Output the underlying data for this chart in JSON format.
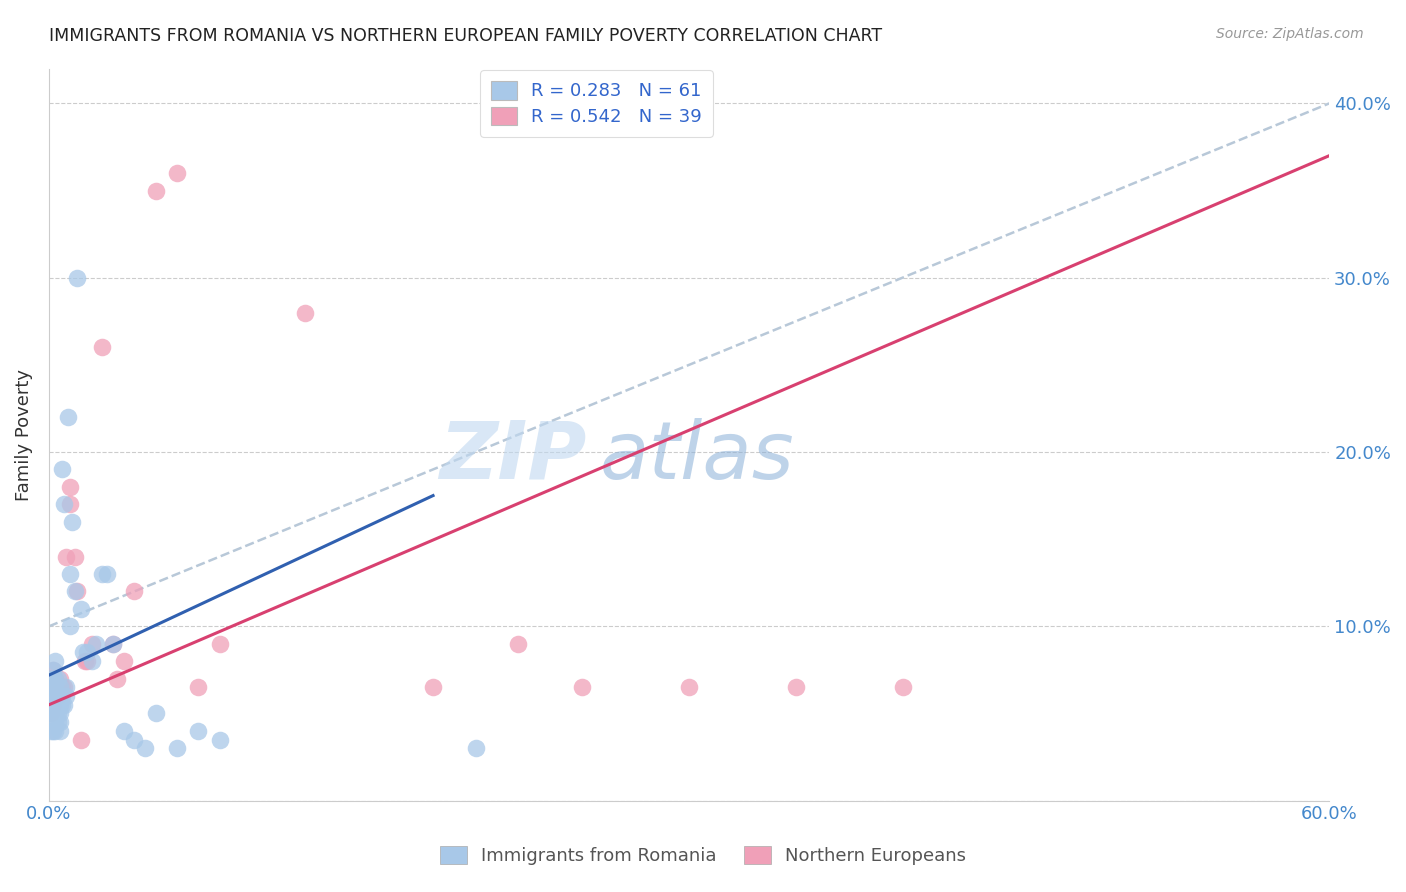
{
  "title": "IMMIGRANTS FROM ROMANIA VS NORTHERN EUROPEAN FAMILY POVERTY CORRELATION CHART",
  "source": "Source: ZipAtlas.com",
  "ylabel": "Family Poverty",
  "legend_label1": "Immigrants from Romania",
  "legend_label2": "Northern Europeans",
  "legend_R1": "R = 0.283",
  "legend_N1": "N = 61",
  "legend_R2": "R = 0.542",
  "legend_N2": "N = 39",
  "color_blue": "#a8c8e8",
  "color_pink": "#f0a0b8",
  "color_blue_line": "#3060b0",
  "color_pink_line": "#d84070",
  "color_dashed": "#b8c8d8",
  "xlim": [
    0.0,
    0.6
  ],
  "ylim": [
    0.0,
    0.42
  ],
  "yticks": [
    0.0,
    0.1,
    0.2,
    0.3,
    0.4
  ],
  "ytick_labels": [
    "",
    "10.0%",
    "20.0%",
    "30.0%",
    "40.0%"
  ],
  "xticks": [
    0.0,
    0.1,
    0.2,
    0.3,
    0.4,
    0.5,
    0.6
  ],
  "xtick_labels": [
    "0.0%",
    "",
    "",
    "",
    "",
    "",
    "60.0%"
  ],
  "watermark_zip": "ZIP",
  "watermark_atlas": "atlas",
  "blue_scatter_x": [
    0.001,
    0.001,
    0.001,
    0.001,
    0.001,
    0.001,
    0.002,
    0.002,
    0.002,
    0.002,
    0.002,
    0.002,
    0.002,
    0.003,
    0.003,
    0.003,
    0.003,
    0.003,
    0.003,
    0.003,
    0.003,
    0.004,
    0.004,
    0.004,
    0.004,
    0.004,
    0.005,
    0.005,
    0.005,
    0.005,
    0.005,
    0.005,
    0.006,
    0.006,
    0.006,
    0.007,
    0.007,
    0.008,
    0.008,
    0.009,
    0.01,
    0.01,
    0.011,
    0.012,
    0.013,
    0.015,
    0.016,
    0.018,
    0.02,
    0.022,
    0.025,
    0.027,
    0.03,
    0.035,
    0.04,
    0.045,
    0.05,
    0.06,
    0.07,
    0.08,
    0.2
  ],
  "blue_scatter_y": [
    0.04,
    0.05,
    0.055,
    0.06,
    0.065,
    0.07,
    0.04,
    0.05,
    0.055,
    0.06,
    0.065,
    0.07,
    0.075,
    0.04,
    0.045,
    0.05,
    0.055,
    0.06,
    0.065,
    0.07,
    0.08,
    0.045,
    0.05,
    0.055,
    0.06,
    0.07,
    0.04,
    0.045,
    0.05,
    0.055,
    0.06,
    0.065,
    0.055,
    0.06,
    0.19,
    0.055,
    0.17,
    0.06,
    0.065,
    0.22,
    0.1,
    0.13,
    0.16,
    0.12,
    0.3,
    0.11,
    0.085,
    0.085,
    0.08,
    0.09,
    0.13,
    0.13,
    0.09,
    0.04,
    0.035,
    0.03,
    0.05,
    0.03,
    0.04,
    0.035,
    0.03
  ],
  "pink_scatter_x": [
    0.001,
    0.001,
    0.001,
    0.002,
    0.002,
    0.002,
    0.003,
    0.003,
    0.004,
    0.004,
    0.005,
    0.005,
    0.006,
    0.007,
    0.008,
    0.01,
    0.01,
    0.012,
    0.013,
    0.015,
    0.017,
    0.018,
    0.02,
    0.025,
    0.03,
    0.032,
    0.035,
    0.04,
    0.05,
    0.06,
    0.07,
    0.08,
    0.12,
    0.18,
    0.22,
    0.25,
    0.3,
    0.35,
    0.4
  ],
  "pink_scatter_y": [
    0.05,
    0.06,
    0.07,
    0.055,
    0.065,
    0.075,
    0.065,
    0.07,
    0.06,
    0.065,
    0.065,
    0.07,
    0.065,
    0.065,
    0.14,
    0.17,
    0.18,
    0.14,
    0.12,
    0.035,
    0.08,
    0.08,
    0.09,
    0.26,
    0.09,
    0.07,
    0.08,
    0.12,
    0.35,
    0.36,
    0.065,
    0.09,
    0.28,
    0.065,
    0.09,
    0.065,
    0.065,
    0.065,
    0.065
  ],
  "blue_line_x0": 0.0,
  "blue_line_y0": 0.072,
  "blue_line_x1": 0.18,
  "blue_line_y1": 0.175,
  "pink_line_x0": 0.0,
  "pink_line_y0": 0.055,
  "pink_line_x1": 0.6,
  "pink_line_y1": 0.37,
  "dash_line_x0": 0.0,
  "dash_line_y0": 0.1,
  "dash_line_x1": 0.6,
  "dash_line_y1": 0.4
}
